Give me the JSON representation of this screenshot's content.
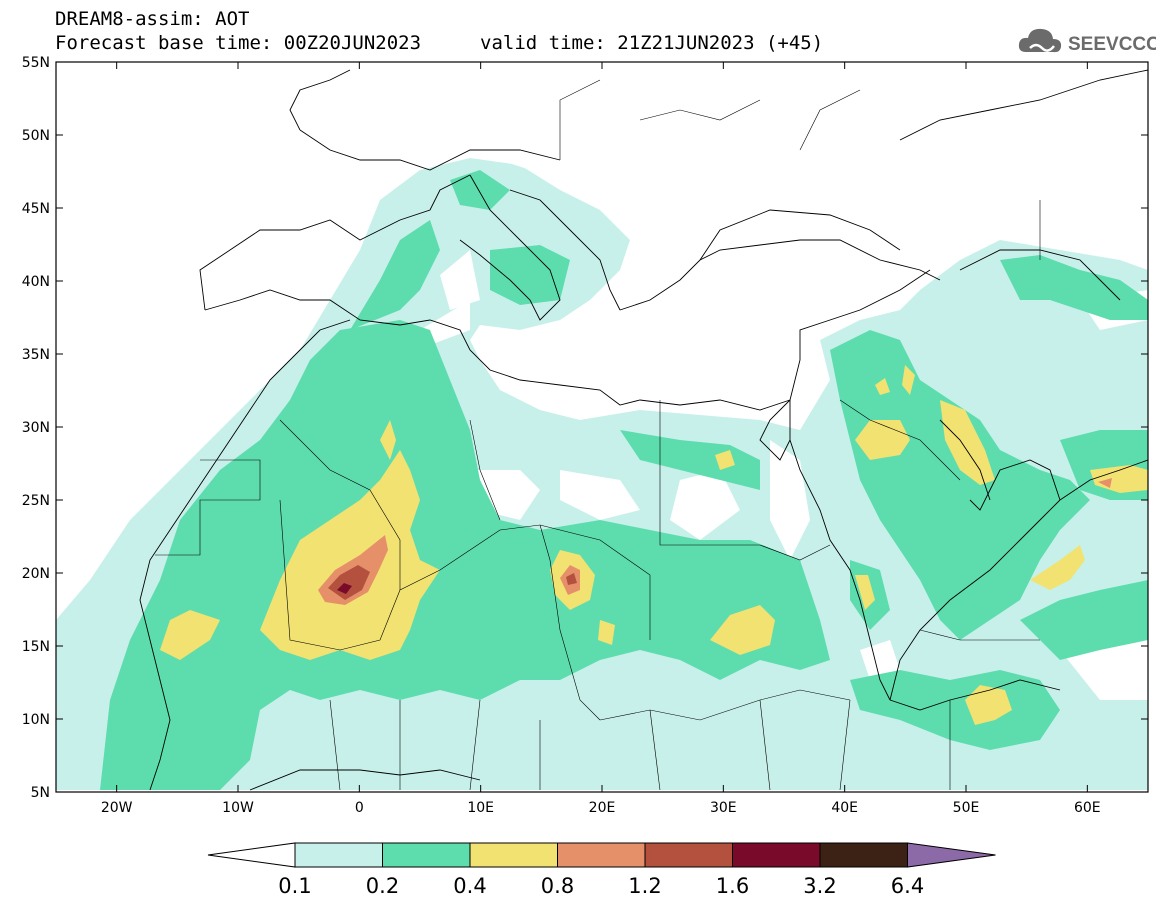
{
  "header": {
    "line1": "DREAM8-assim: AOT",
    "line2": "Forecast base time: 00Z20JUN2023",
    "valid": "valid time: 21Z21JUN2023 (+45)",
    "logo_text": "SEEVCCC"
  },
  "map": {
    "lat_labels": [
      "55N",
      "50N",
      "45N",
      "40N",
      "35N",
      "30N",
      "25N",
      "20N",
      "15N",
      "10N",
      "5N"
    ],
    "lat_values": [
      55,
      50,
      45,
      40,
      35,
      30,
      25,
      20,
      15,
      10,
      5
    ],
    "lon_labels": [
      "20W",
      "10W",
      "0",
      "10E",
      "20E",
      "30E",
      "40E",
      "50E",
      "60E"
    ],
    "lon_values": [
      -20,
      -10,
      0,
      10,
      20,
      30,
      40,
      50,
      60
    ],
    "lon_range": [
      -25,
      65
    ],
    "lat_range": [
      5,
      55
    ]
  },
  "legend": {
    "levels": [
      "0.1",
      "0.2",
      "0.4",
      "0.8",
      "1.2",
      "1.6",
      "3.2",
      "6.4"
    ],
    "colors": [
      "#c8f0ea",
      "#5ddcae",
      "#f2e272",
      "#e6906a",
      "#b4503e",
      "#7a0a2a",
      "#3c2214",
      "#8c6aa8"
    ]
  },
  "colors": {
    "c01": "#c8f0ea",
    "c02": "#5ddcae",
    "c04": "#f2e272",
    "c08": "#e6906a",
    "c12": "#b4503e",
    "c16": "#7a0a2a"
  }
}
